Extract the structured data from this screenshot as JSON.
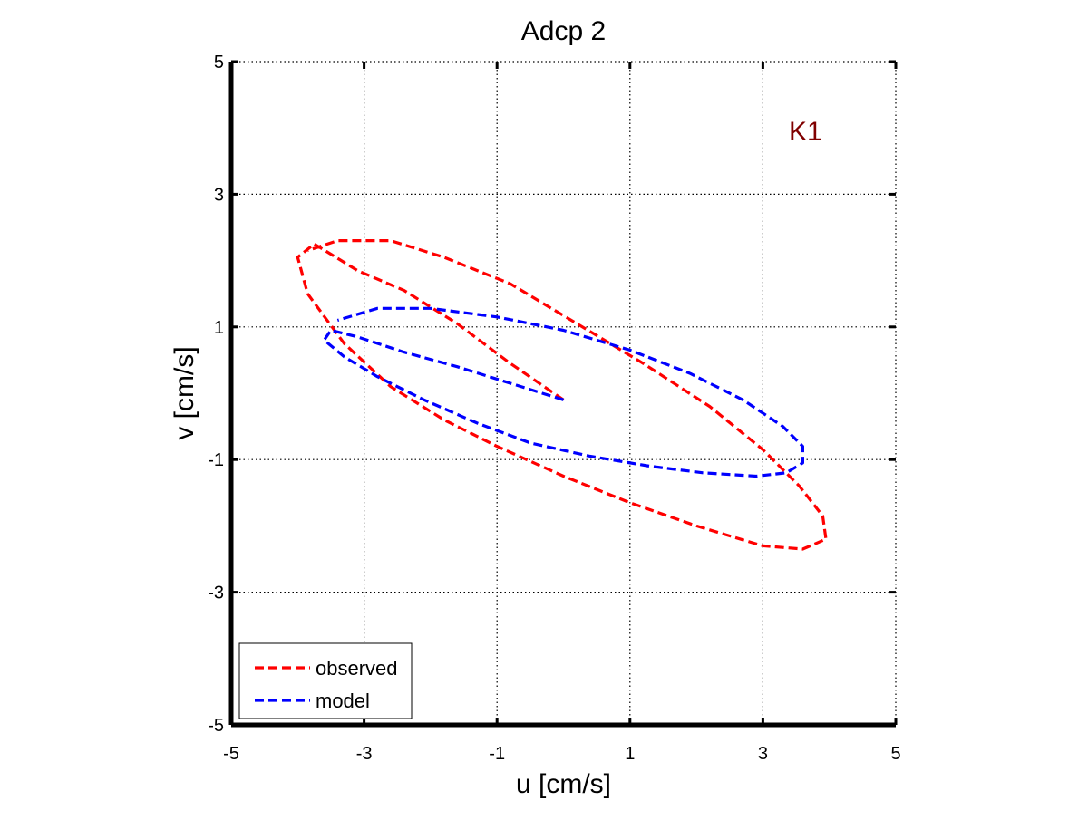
{
  "chart_data": {
    "type": "line",
    "title": "Adcp 2",
    "xlabel": "u [cm/s]",
    "ylabel": "v [cm/s]",
    "xlim": [
      -5,
      5
    ],
    "ylim": [
      -5,
      5
    ],
    "xticks": [
      -5,
      -3,
      -1,
      1,
      3,
      5
    ],
    "yticks": [
      -5,
      -3,
      -1,
      1,
      3,
      5
    ],
    "xtick_labels": [
      "-5",
      "-3",
      "-1",
      "1",
      "3",
      "5"
    ],
    "ytick_labels": [
      "-5",
      "-3",
      "-1",
      "1",
      "3",
      "5"
    ],
    "grid": true,
    "annotation": "K1",
    "legend_position": "bottom-left",
    "series": [
      {
        "name": "observed",
        "color": "#ff0000",
        "line_style": "dashed",
        "points": [
          [
            0.0,
            -0.1
          ],
          [
            -0.8,
            0.45
          ],
          [
            -1.6,
            1.05
          ],
          [
            -2.4,
            1.55
          ],
          [
            -3.1,
            1.85
          ],
          [
            -3.75,
            2.25
          ],
          [
            -4.0,
            2.05
          ],
          [
            -3.85,
            1.5
          ],
          [
            -3.3,
            0.75
          ],
          [
            -2.6,
            0.1
          ],
          [
            -1.8,
            -0.4
          ],
          [
            -1.0,
            -0.8
          ],
          [
            0.0,
            -1.25
          ],
          [
            1.0,
            -1.65
          ],
          [
            2.0,
            -2.0
          ],
          [
            3.0,
            -2.3
          ],
          [
            3.6,
            -2.35
          ],
          [
            3.95,
            -2.2
          ],
          [
            3.9,
            -1.85
          ],
          [
            3.55,
            -1.4
          ],
          [
            3.0,
            -0.85
          ],
          [
            2.2,
            -0.2
          ],
          [
            1.2,
            0.45
          ],
          [
            0.2,
            1.05
          ],
          [
            -0.8,
            1.65
          ],
          [
            -1.8,
            2.05
          ],
          [
            -2.6,
            2.3
          ],
          [
            -3.4,
            2.3
          ],
          [
            -3.85,
            2.15
          ]
        ]
      },
      {
        "name": "model",
        "color": "#0000ff",
        "line_style": "dashed",
        "points": [
          [
            0.0,
            -0.1
          ],
          [
            -0.8,
            0.15
          ],
          [
            -1.6,
            0.4
          ],
          [
            -2.4,
            0.62
          ],
          [
            -3.1,
            0.85
          ],
          [
            -3.5,
            0.95
          ],
          [
            -3.6,
            0.8
          ],
          [
            -3.3,
            0.55
          ],
          [
            -2.8,
            0.25
          ],
          [
            -2.1,
            -0.1
          ],
          [
            -1.3,
            -0.45
          ],
          [
            -0.5,
            -0.75
          ],
          [
            0.4,
            -0.95
          ],
          [
            1.3,
            -1.1
          ],
          [
            2.1,
            -1.2
          ],
          [
            2.9,
            -1.25
          ],
          [
            3.35,
            -1.2
          ],
          [
            3.6,
            -1.05
          ],
          [
            3.6,
            -0.8
          ],
          [
            3.3,
            -0.5
          ],
          [
            2.7,
            -0.1
          ],
          [
            1.9,
            0.3
          ],
          [
            1.0,
            0.65
          ],
          [
            0.0,
            0.95
          ],
          [
            -1.0,
            1.15
          ],
          [
            -2.0,
            1.28
          ],
          [
            -2.8,
            1.28
          ],
          [
            -3.4,
            1.1
          ]
        ]
      }
    ]
  },
  "colors": {
    "axis": "#000000",
    "grid": "#000000",
    "annotation": "#800000",
    "background": "#ffffff"
  }
}
